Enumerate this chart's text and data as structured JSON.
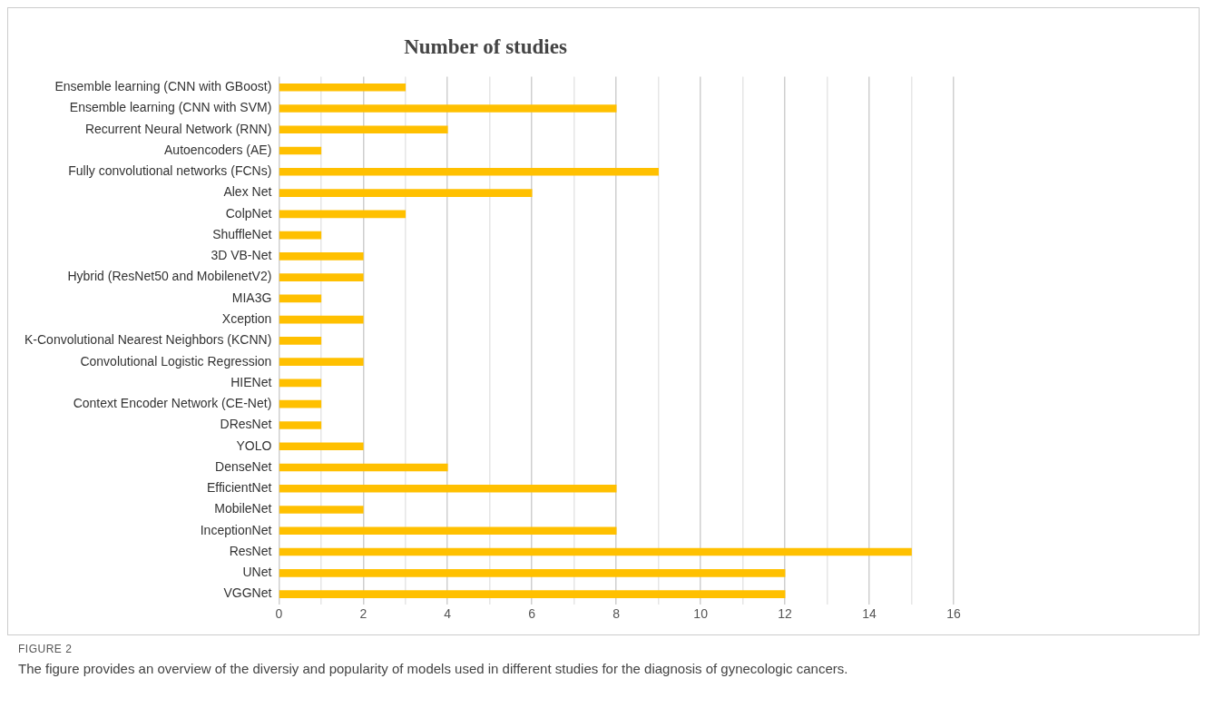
{
  "chart_data": {
    "type": "bar",
    "orientation": "horizontal",
    "title": "Number of studies",
    "categories": [
      "Ensemble learning (CNN with GBoost)",
      "Ensemble learning (CNN with SVM)",
      "Recurrent Neural Network (RNN)",
      "Autoencoders (AE)",
      "Fully convolutional networks (FCNs)",
      "Alex Net",
      "ColpNet",
      "ShuffleNet",
      "3D VB-Net",
      "Hybrid (ResNet50 and MobilenetV2)",
      "MIA3G",
      "Xception",
      "K-Convolutional Nearest Neighbors (KCNN)",
      "Convolutional Logistic Regression",
      "HIENet",
      "Context Encoder Network (CE-Net)",
      "DResNet",
      "YOLO",
      "DenseNet",
      "EfficientNet",
      "MobileNet",
      "InceptionNet",
      "ResNet",
      "UNet",
      "VGGNet"
    ],
    "values": [
      3,
      8,
      4,
      1,
      9,
      6,
      3,
      1,
      2,
      2,
      1,
      2,
      1,
      2,
      1,
      1,
      1,
      2,
      4,
      8,
      2,
      8,
      15,
      12,
      12
    ],
    "color": "#ffc000",
    "xlim": [
      0,
      16
    ],
    "xticks": [
      0,
      {
        "value": 1,
        "label": null
      },
      2,
      {
        "value": 3,
        "label": null
      },
      4,
      {
        "value": 5,
        "label": null
      },
      6,
      {
        "value": 7,
        "label": null
      },
      8,
      {
        "value": 9,
        "label": null
      },
      10,
      {
        "value": 11,
        "label": null
      },
      12,
      {
        "value": 13,
        "label": null
      },
      14,
      {
        "value": 15,
        "label": null
      },
      16
    ],
    "grid": "x",
    "legend": false,
    "annotations": [
      "FIGURE 2",
      "The figure provides an overview of the diversiy and popularity of models used in different studies for the diagnosis of gynecologic cancers."
    ]
  }
}
